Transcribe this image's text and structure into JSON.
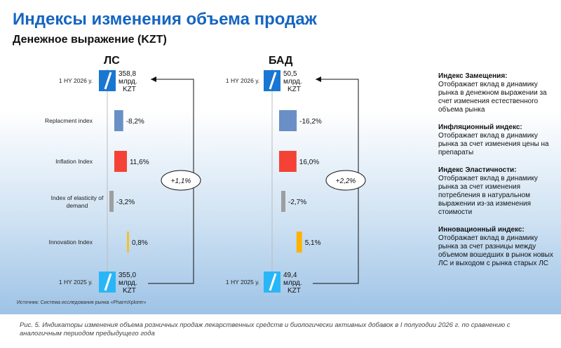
{
  "header": {
    "title": "Индексы изменения объема продаж",
    "subtitle": "Денежное выражение (KZT)"
  },
  "chart_data": [
    {
      "type": "bar",
      "title": "ЛС",
      "categories": [
        "1 HY 2026 у.",
        "Replacment index",
        "Inflation Index",
        "Index of elasticity of demand",
        "Innovation Index",
        "1 HY 2025 у."
      ],
      "values": [
        358.8,
        -8.2,
        11.6,
        -3.2,
        0.8,
        355.0
      ],
      "value_labels": [
        "358,8 млрд. KZT",
        "-8,2%",
        "11,6%",
        "-3,2%",
        "0,8%",
        "355,0 млрд. KZT"
      ],
      "change_label": "+1,1%",
      "bar_colors": [
        "#1976d2",
        "#6a8fc7",
        "#f44336",
        "#9e9e9e",
        "#f2c12e",
        "#29b6f6"
      ]
    },
    {
      "type": "bar",
      "title": "БАД",
      "categories": [
        "1 HY 2026 у.",
        "",
        "",
        "",
        "",
        "1 HY 2025 у."
      ],
      "values": [
        50.5,
        -16.2,
        16.0,
        -2.7,
        5.1,
        49.4
      ],
      "value_labels": [
        "50,5 млрд. KZT",
        "-16,2%",
        "16,0%",
        "-2,7%",
        "5,1%",
        "49,4 млрд. KZT"
      ],
      "change_label": "+2,2%",
      "bar_colors": [
        "#1976d2",
        "#6a8fc7",
        "#f44336",
        "#9e9e9e",
        "#ffb300",
        "#29b6f6"
      ]
    }
  ],
  "descriptions": [
    {
      "title": "Индекс Замещения:",
      "text": "Отображает вклад в динамику рынка в денежном выражении за счет изменения естественного объема рынка"
    },
    {
      "title": "Инфляционный индекс:",
      "text": "Отображает вклад в динамику рынка за счет изменения цены на препараты"
    },
    {
      "title": "Индекс Эластичности:",
      "text": "Отображает вклад в динамику рынка за счет изменения потребления в натуральном выражении из-за изменения стоимости"
    },
    {
      "title": "Инновационный индекс:",
      "text": "Отображает вклад в динамику рынка за счет разницы между объемом вошедших в рынок новых ЛС и выходом с рынка старых ЛС"
    }
  ],
  "source": "Источник: Система исследования рынка «PharmXplorer»",
  "caption": "Рис. 5. Индикаторы изменения объема розничных продаж лекарственных средств и биологически активных добавок в I полугодии 2026 г. по сравнению с аналогичным периодом предыдущего года"
}
